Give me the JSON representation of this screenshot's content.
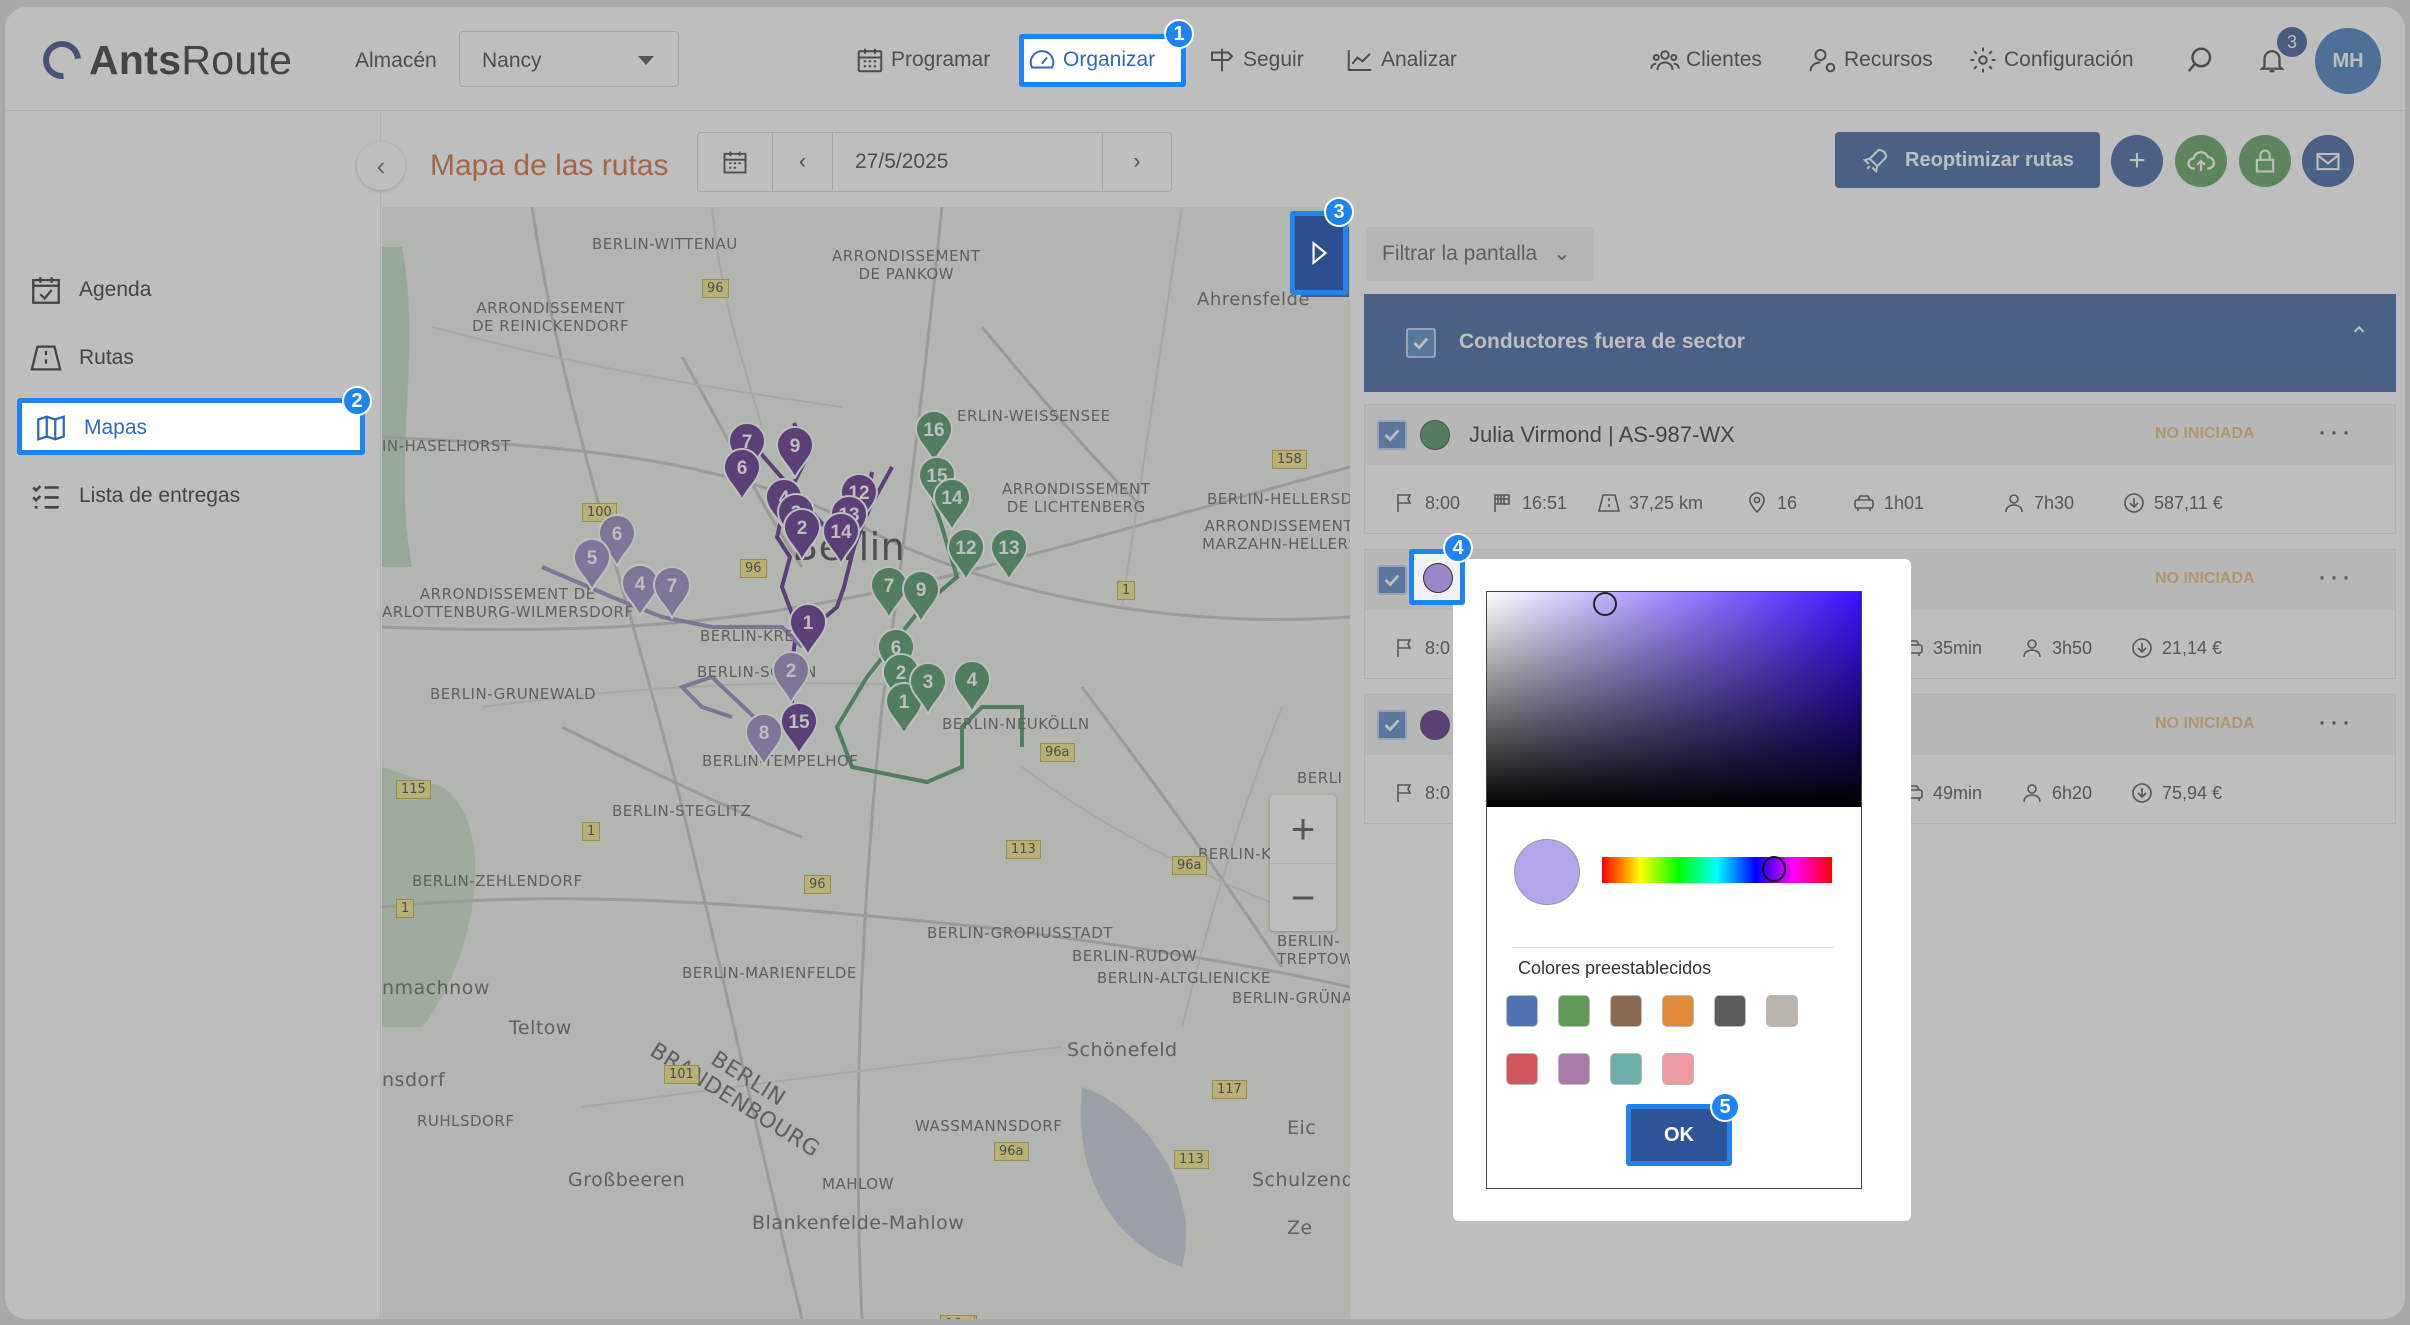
{
  "app": {
    "logo_bold": "Ants",
    "logo_light": "Route"
  },
  "warehouse": {
    "label": "Almacén",
    "value": "Nancy"
  },
  "nav": {
    "programar": "Programar",
    "organizar": "Organizar",
    "seguir": "Seguir",
    "analizar": "Analizar",
    "clientes": "Clientes",
    "recursos": "Recursos",
    "configuracion": "Configuración"
  },
  "notifications_count": "3",
  "avatar_initials": "MH",
  "sidebar": {
    "agenda": "Agenda",
    "rutas": "Rutas",
    "mapas": "Mapas",
    "lista": "Lista de entregas"
  },
  "page": {
    "title": "Mapa de las rutas",
    "date": "27/5/2025",
    "reoptimize": "Reoptimizar rutas"
  },
  "filter": {
    "label": "Filtrar la pantalla"
  },
  "group": {
    "title": "Conductores fuera de sector"
  },
  "drivers": [
    {
      "name": "Julia Virmond | AS-987-WX",
      "color": "#3a8a55",
      "status": "NO INICIADA",
      "stats": {
        "start": "8:00",
        "end": "16:51",
        "distance": "37,25 km",
        "stops": "16",
        "drive": "1h01",
        "work": "7h30",
        "cost": "587,11 €"
      }
    },
    {
      "name": "",
      "color": "#9a86c9",
      "status": "NO INICIADA",
      "stats": {
        "start": "8:0",
        "drive": "35min",
        "work": "3h50",
        "cost": "21,14 €"
      }
    },
    {
      "name": "",
      "color": "#4a1a7e",
      "status": "NO INICIADA",
      "stats": {
        "start": "8:0",
        "drive": "49min",
        "work": "6h20",
        "cost": "75,94 €"
      }
    }
  ],
  "color_picker": {
    "selected": "#b4a6ea",
    "presets_label": "Colores preestablecidos",
    "presets": [
      "#4f72b0",
      "#5f9a57",
      "#8a6b52",
      "#e08a3a",
      "#5b5b5b",
      "#b9b3ad",
      "#d2555a",
      "#a87ba8",
      "#6cb0a8",
      "#ee9aa0"
    ],
    "ok": "OK"
  },
  "steps": [
    "1",
    "2",
    "3",
    "4",
    "5"
  ],
  "map": {
    "labels": {
      "wittenau": "BERLIN-WITTENAU",
      "pankow": "ARRONDISSEMENT\nDE PANKOW",
      "ahrensfelde": "Ahrensfelde",
      "reinickendorf": "ARRONDISSEMENT\nDE REINICKENDORF",
      "haselhorst": "IN-HASELHORST",
      "weissensee": "ERLIN-WEISSENSEE",
      "lichtenberg": "ARRONDISSEMENT\nDE LICHTENBERG",
      "hellersdorf": "BERLIN-HELLERSD",
      "marzahn": "ARRONDISSEMENT DE\nMARZAHN-HELLERSDO",
      "berlin": "Berlin",
      "charlottenburg": "ARRONDISSEMENT DE\nARLOTTENBURG-WILMERSDORF",
      "grunewald": "BERLIN-GRUNEWALD",
      "kreuzberg": "BERLIN-KREU",
      "schoneberg": "BERLIN-SCHÖN",
      "neukolln": "BERLIN-NEUKÖLLN",
      "tempelhof": "BERLIN-TEMPELHOF",
      "steglitz": "BERLIN-STEGLITZ",
      "zehlendorf": "BERLIN-ZEHLENDORF",
      "kleinmachnow": "nmachnow",
      "mariendorf": "BERLIN-MARIENFELDE",
      "gropiusstadt": "BERLIN-GROPIUSSTADT",
      "rudow": "BERLIN-RUDOW",
      "altglienicke": "BERLIN-ALTGLIENICKE",
      "grunau": "BERLIN-GRÜNA",
      "teltow": "Teltow",
      "stahnsdorf": "nsdorf",
      "ruhlsdorf": "RUHLSDORF",
      "brandenburg": "BERLIN\nBRANDENBOURG",
      "schonefeld": "Schönefeld",
      "wassmannsdorf": "WASSMANNSDORF",
      "grossbeeren": "Großbeeren",
      "mahlow": "MAHLOW",
      "blankenfelde": "Blankenfelde-Mahlow",
      "schulzendorf": "Schulzendorf",
      "kopenick": "BERLIN-KÖ",
      "treptow": "BERLIN-\nTREPTOW",
      "eich": "Eic",
      "berli": "BERLI",
      "ze": "Ze"
    },
    "road_numbers": [
      "96",
      "158",
      "100",
      "96",
      "1",
      "115",
      "1",
      "1",
      "96",
      "113",
      "96a",
      "96a",
      "101",
      "117",
      "113",
      "96a",
      "96",
      "96a"
    ]
  }
}
